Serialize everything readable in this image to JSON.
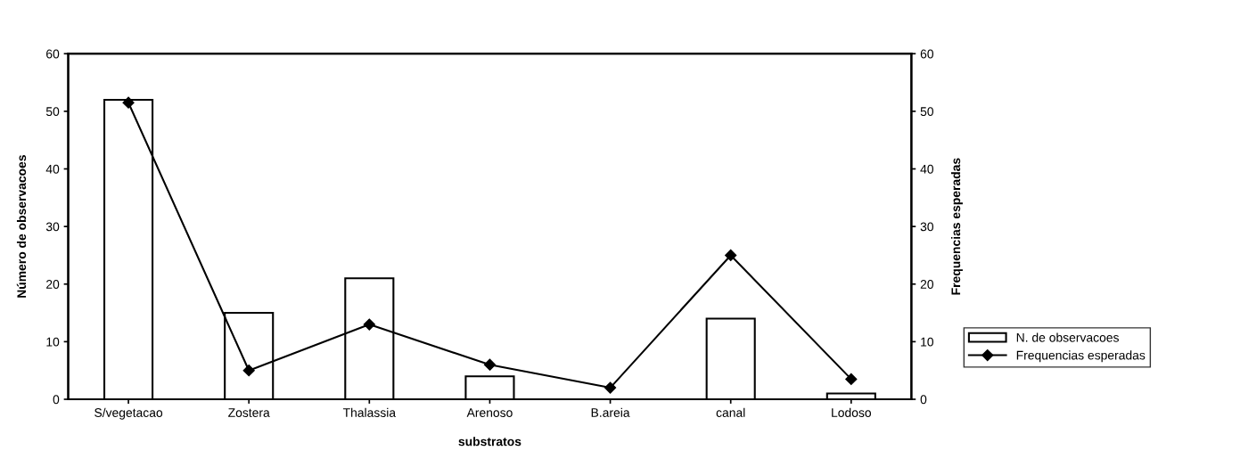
{
  "chart_data": {
    "type": "bar",
    "xlabel": "substratos",
    "ylabel": "Número de observacoes",
    "y2label": "Frequencias esperadas",
    "categories": [
      "S/vegetacao",
      "Zostera",
      "Thalassia",
      "Arenoso",
      "B.areia",
      "canal",
      "Lodoso"
    ],
    "series": [
      {
        "name": "N. de observacoes",
        "color": "#ffffff",
        "values": [
          52,
          15,
          21,
          4,
          null,
          14,
          1
        ]
      },
      {
        "name": "Frequencias esperadas",
        "type": "line",
        "color": "#000000",
        "marker": "diamond",
        "values": [
          51.5,
          5,
          13,
          6,
          2,
          25,
          3.5
        ]
      }
    ],
    "ylim": [
      0,
      60
    ],
    "yticks": [
      0,
      10,
      20,
      30,
      40,
      50,
      60
    ],
    "y2lim": [
      0,
      60
    ],
    "y2ticks": [
      0,
      10,
      20,
      30,
      40,
      50,
      60
    ],
    "grid": false,
    "legend": "right"
  }
}
